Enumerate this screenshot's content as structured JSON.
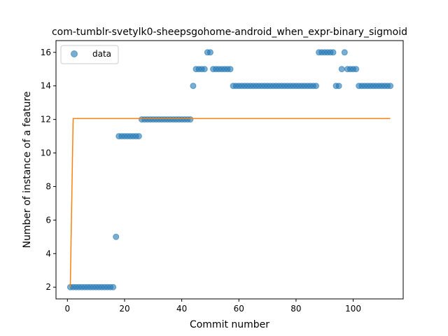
{
  "chart_data": {
    "type": "scatter",
    "title": "com-tumblr-svetylk0-sheepsgohome-android_when_expr-binary_sigmoid",
    "xlabel": "Commit number",
    "ylabel": "Number of instance of a feature",
    "xlim": [
      -4,
      117.5
    ],
    "ylim": [
      1.3,
      16.7
    ],
    "xticks": [
      0,
      20,
      40,
      60,
      80,
      100
    ],
    "yticks": [
      2,
      4,
      6,
      8,
      10,
      12,
      14,
      16
    ],
    "legend": {
      "position": "top-left",
      "entries": [
        "data"
      ]
    },
    "colors": {
      "data": "#1f77b4",
      "fit": "#ff7f0e"
    },
    "grid": false,
    "series": [
      {
        "name": "data",
        "kind": "scatter",
        "x": [
          1,
          2,
          3,
          4,
          5,
          6,
          7,
          8,
          9,
          10,
          11,
          12,
          13,
          14,
          15,
          16,
          17,
          18,
          19,
          20,
          21,
          22,
          23,
          24,
          25,
          26,
          27,
          28,
          29,
          30,
          31,
          32,
          33,
          34,
          35,
          36,
          37,
          38,
          39,
          40,
          41,
          42,
          43,
          44,
          45,
          46,
          47,
          48,
          49,
          50,
          51,
          52,
          53,
          54,
          55,
          56,
          57,
          58,
          59,
          60,
          61,
          62,
          63,
          64,
          65,
          66,
          67,
          68,
          69,
          70,
          71,
          72,
          73,
          74,
          75,
          76,
          77,
          78,
          79,
          80,
          81,
          82,
          83,
          84,
          85,
          86,
          87,
          88,
          89,
          90,
          91,
          92,
          93,
          94,
          95,
          96,
          97,
          98,
          99,
          100,
          101,
          102,
          103,
          104,
          105,
          106,
          107,
          108,
          109,
          110,
          111,
          112,
          113
        ],
        "y": [
          2,
          2,
          2,
          2,
          2,
          2,
          2,
          2,
          2,
          2,
          2,
          2,
          2,
          2,
          2,
          2,
          5,
          11,
          11,
          11,
          11,
          11,
          11,
          11,
          11,
          12,
          12,
          12,
          12,
          12,
          12,
          12,
          12,
          12,
          12,
          12,
          12,
          12,
          12,
          12,
          12,
          12,
          12,
          14,
          15,
          15,
          15,
          15,
          16,
          16,
          15,
          15,
          15,
          15,
          15,
          15,
          15,
          14,
          14,
          14,
          14,
          14,
          14,
          14,
          14,
          14,
          14,
          14,
          14,
          14,
          14,
          14,
          14,
          14,
          14,
          14,
          14,
          14,
          14,
          14,
          14,
          14,
          14,
          14,
          14,
          14,
          14,
          16,
          16,
          16,
          16,
          16,
          16,
          14,
          14,
          15,
          16,
          15,
          15,
          15,
          15,
          14,
          14,
          14,
          14,
          14,
          14,
          14,
          14,
          14,
          14,
          14,
          14
        ]
      },
      {
        "kind": "line",
        "x": [
          1,
          2,
          113
        ],
        "y": [
          2,
          12.05,
          12.05
        ]
      }
    ]
  }
}
